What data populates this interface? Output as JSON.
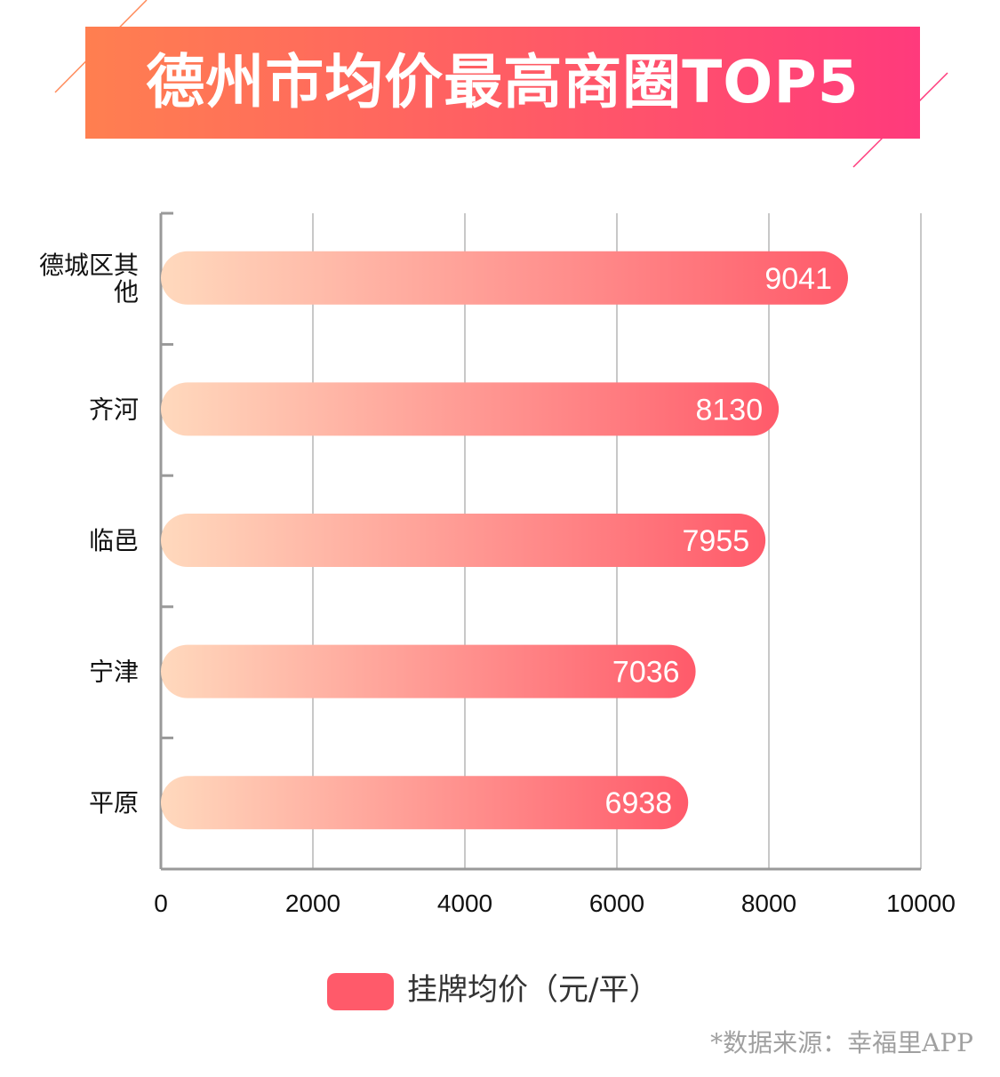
{
  "title": "德州市均价最高商圈TOP5",
  "source": "*数据来源：幸福里APP",
  "colors": {
    "banner_start": "#ff7f50",
    "banner_end": "#ff3a7c",
    "bar_start": "#ffd9bd",
    "bar_end": "#ff5a6a",
    "grid": "#c8c8c8",
    "axis": "#999999",
    "bar_label": "#ffffff"
  },
  "chart_data": {
    "type": "bar",
    "orientation": "horizontal",
    "categories": [
      "德城区其他",
      "齐河",
      "临邑",
      "宁津",
      "平原"
    ],
    "series": [
      {
        "name": "挂牌均价（元/平）",
        "values": [
          9041,
          8130,
          7955,
          7036,
          6938
        ]
      }
    ],
    "xlim": [
      0,
      10000
    ],
    "x_ticks": [
      "0",
      "2000",
      "4000",
      "6000",
      "8000",
      "10000"
    ],
    "grid": true,
    "legend": "bottom-center",
    "data_labels": true
  }
}
